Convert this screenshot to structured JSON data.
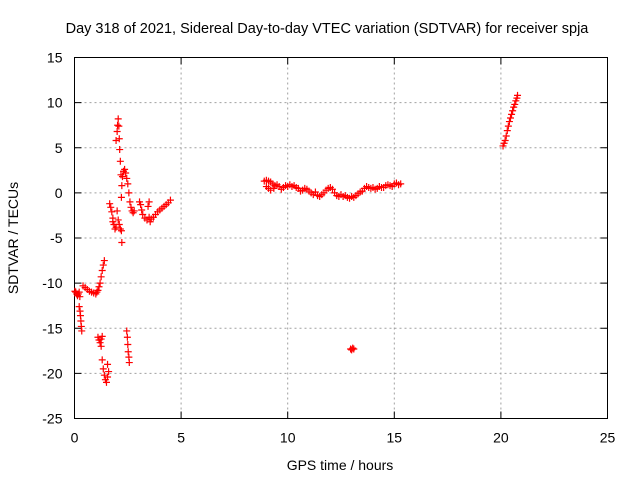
{
  "chart_data": {
    "type": "scatter",
    "title": "Day 318 of 2021, Sidereal Day-to-day VTEC variation (SDTVAR) for receiver spja",
    "xlabel": "GPS time / hours",
    "ylabel": "SDTVAR / TECUs",
    "xlim": [
      0,
      25
    ],
    "ylim": [
      -25,
      15
    ],
    "xticks": [
      0,
      5,
      10,
      15,
      20,
      25
    ],
    "yticks": [
      -25,
      -20,
      -15,
      -10,
      -5,
      0,
      5,
      10,
      15
    ],
    "grid": true,
    "marker": "+",
    "marker_color": "#ff0000",
    "series": [
      {
        "points": [
          [
            0.02,
            -10.9
          ],
          [
            0.06,
            -11.0
          ],
          [
            0.1,
            -11.2
          ],
          [
            0.14,
            -11.4
          ],
          [
            0.18,
            -11.2
          ],
          [
            0.22,
            -11.0
          ],
          [
            0.25,
            -11.5
          ],
          [
            0.22,
            -12.6
          ],
          [
            0.26,
            -13.1
          ],
          [
            0.28,
            -13.6
          ],
          [
            0.3,
            -14.2
          ],
          [
            0.32,
            -14.8
          ],
          [
            0.34,
            -15.3
          ],
          [
            0.4,
            -10.3
          ],
          [
            0.5,
            -10.5
          ],
          [
            0.6,
            -10.7
          ],
          [
            0.7,
            -10.9
          ],
          [
            0.8,
            -11.0
          ],
          [
            0.9,
            -11.1
          ],
          [
            1.0,
            -11.2
          ],
          [
            1.05,
            -11.0
          ],
          [
            1.1,
            -10.8
          ],
          [
            1.15,
            -10.4
          ],
          [
            1.2,
            -10.0
          ],
          [
            1.25,
            -9.3
          ],
          [
            1.3,
            -8.6
          ],
          [
            1.35,
            -8.0
          ],
          [
            1.4,
            -7.5
          ],
          [
            1.1,
            -16.0
          ],
          [
            1.15,
            -16.3
          ],
          [
            1.2,
            -16.6
          ],
          [
            1.25,
            -16.2
          ],
          [
            1.3,
            -15.9
          ],
          [
            1.25,
            -17.0
          ],
          [
            1.3,
            -18.5
          ],
          [
            1.35,
            -19.5
          ],
          [
            1.4,
            -20.2
          ],
          [
            1.45,
            -20.7
          ],
          [
            1.5,
            -21.0
          ],
          [
            1.55,
            -20.4
          ],
          [
            1.6,
            -19.8
          ],
          [
            1.55,
            -19.0
          ],
          [
            1.65,
            -1.2
          ],
          [
            1.7,
            -1.6
          ],
          [
            1.75,
            -2.1
          ],
          [
            1.8,
            -2.8
          ],
          [
            1.85,
            -3.5
          ],
          [
            1.9,
            -4.0
          ],
          [
            1.8,
            -3.2
          ],
          [
            1.95,
            -3.8
          ],
          [
            1.95,
            5.8
          ],
          [
            2.0,
            6.8
          ],
          [
            2.02,
            7.5
          ],
          [
            2.05,
            8.2
          ],
          [
            2.08,
            7.4
          ],
          [
            2.1,
            6.0
          ],
          [
            2.12,
            4.8
          ],
          [
            2.15,
            3.5
          ],
          [
            2.18,
            2.0
          ],
          [
            2.0,
            -2.0
          ],
          [
            2.05,
            -3.0
          ],
          [
            2.1,
            -3.5
          ],
          [
            2.15,
            -4.0
          ],
          [
            2.2,
            -4.2
          ],
          [
            2.22,
            -5.5
          ],
          [
            2.2,
            -0.5
          ],
          [
            2.22,
            0.8
          ],
          [
            2.25,
            1.8
          ],
          [
            2.3,
            2.4
          ],
          [
            2.35,
            2.6
          ],
          [
            2.4,
            2.2
          ],
          [
            2.45,
            1.6
          ],
          [
            2.5,
            1.0
          ],
          [
            2.55,
            0.0
          ],
          [
            2.6,
            -1.0
          ],
          [
            2.65,
            -1.6
          ],
          [
            2.7,
            -2.0
          ],
          [
            2.75,
            -2.2
          ],
          [
            2.8,
            -2.0
          ],
          [
            2.45,
            -15.3
          ],
          [
            2.48,
            -16.0
          ],
          [
            2.5,
            -16.8
          ],
          [
            2.52,
            -17.6
          ],
          [
            2.55,
            -18.2
          ],
          [
            2.57,
            -18.8
          ],
          [
            3.05,
            -1.0
          ],
          [
            3.1,
            -1.3
          ],
          [
            3.15,
            -1.9
          ],
          [
            3.2,
            -2.4
          ],
          [
            3.3,
            -2.8
          ],
          [
            3.4,
            -3.0
          ],
          [
            3.5,
            -2.7
          ],
          [
            3.45,
            -1.5
          ],
          [
            3.5,
            -1.0
          ],
          [
            3.55,
            -3.2
          ],
          [
            3.6,
            -2.9
          ],
          [
            3.7,
            -2.7
          ],
          [
            3.8,
            -2.4
          ],
          [
            3.9,
            -2.1
          ],
          [
            4.0,
            -1.9
          ],
          [
            4.1,
            -1.7
          ],
          [
            4.2,
            -1.5
          ],
          [
            4.3,
            -1.3
          ],
          [
            4.4,
            -1.1
          ],
          [
            4.5,
            -0.8
          ],
          [
            8.9,
            1.3
          ],
          [
            9.0,
            1.4
          ],
          [
            9.1,
            1.3
          ],
          [
            9.2,
            1.2
          ],
          [
            9.3,
            1.0
          ],
          [
            9.0,
            0.7
          ],
          [
            9.1,
            0.5
          ],
          [
            9.2,
            0.3
          ],
          [
            9.35,
            0.5
          ],
          [
            9.4,
            0.8
          ],
          [
            9.5,
            0.9
          ],
          [
            9.6,
            0.7
          ],
          [
            9.7,
            0.4
          ],
          [
            9.8,
            0.6
          ],
          [
            9.9,
            0.8
          ],
          [
            10.0,
            0.7
          ],
          [
            10.1,
            0.9
          ],
          [
            10.2,
            0.7
          ],
          [
            10.3,
            0.8
          ],
          [
            10.4,
            0.6
          ],
          [
            10.5,
            0.5
          ],
          [
            10.6,
            0.2
          ],
          [
            10.7,
            0.3
          ],
          [
            10.8,
            0.5
          ],
          [
            10.9,
            0.4
          ],
          [
            11.0,
            0.2
          ],
          [
            11.1,
            0.0
          ],
          [
            11.2,
            -0.2
          ],
          [
            11.3,
            0.1
          ],
          [
            11.4,
            -0.3
          ],
          [
            11.5,
            -0.4
          ],
          [
            11.6,
            -0.2
          ],
          [
            11.7,
            0.0
          ],
          [
            11.8,
            0.3
          ],
          [
            11.9,
            0.5
          ],
          [
            12.0,
            0.6
          ],
          [
            12.1,
            0.4
          ],
          [
            12.2,
            0.0
          ],
          [
            12.3,
            -0.3
          ],
          [
            12.4,
            -0.4
          ],
          [
            12.5,
            -0.2
          ],
          [
            12.6,
            -0.4
          ],
          [
            12.7,
            -0.3
          ],
          [
            12.8,
            -0.5
          ],
          [
            12.9,
            -0.6
          ],
          [
            13.0,
            -0.4
          ],
          [
            13.1,
            -0.5
          ],
          [
            13.2,
            -0.3
          ],
          [
            13.3,
            -0.1
          ],
          [
            13.4,
            0.1
          ],
          [
            13.5,
            0.2
          ],
          [
            13.6,
            0.5
          ],
          [
            13.7,
            0.7
          ],
          [
            13.8,
            0.6
          ],
          [
            13.9,
            0.5
          ],
          [
            14.0,
            0.6
          ],
          [
            14.1,
            0.4
          ],
          [
            14.2,
            0.5
          ],
          [
            14.3,
            0.7
          ],
          [
            14.4,
            0.6
          ],
          [
            14.5,
            0.6
          ],
          [
            14.6,
            0.8
          ],
          [
            14.7,
            0.9
          ],
          [
            14.8,
            0.8
          ],
          [
            14.9,
            0.7
          ],
          [
            15.0,
            1.0
          ],
          [
            15.1,
            1.1
          ],
          [
            15.2,
            0.9
          ],
          [
            15.3,
            1.0
          ],
          [
            12.95,
            -17.3
          ],
          [
            13.0,
            -17.4
          ],
          [
            13.05,
            -17.2
          ],
          [
            13.1,
            -17.3
          ],
          [
            20.1,
            5.2
          ],
          [
            20.15,
            5.5
          ],
          [
            20.2,
            5.8
          ],
          [
            20.25,
            6.3
          ],
          [
            20.3,
            6.9
          ],
          [
            20.35,
            7.4
          ],
          [
            20.4,
            7.9
          ],
          [
            20.45,
            8.3
          ],
          [
            20.5,
            8.7
          ],
          [
            20.55,
            9.1
          ],
          [
            20.6,
            9.5
          ],
          [
            20.65,
            9.8
          ],
          [
            20.7,
            10.2
          ],
          [
            20.75,
            10.5
          ],
          [
            20.78,
            10.8
          ]
        ]
      }
    ]
  }
}
